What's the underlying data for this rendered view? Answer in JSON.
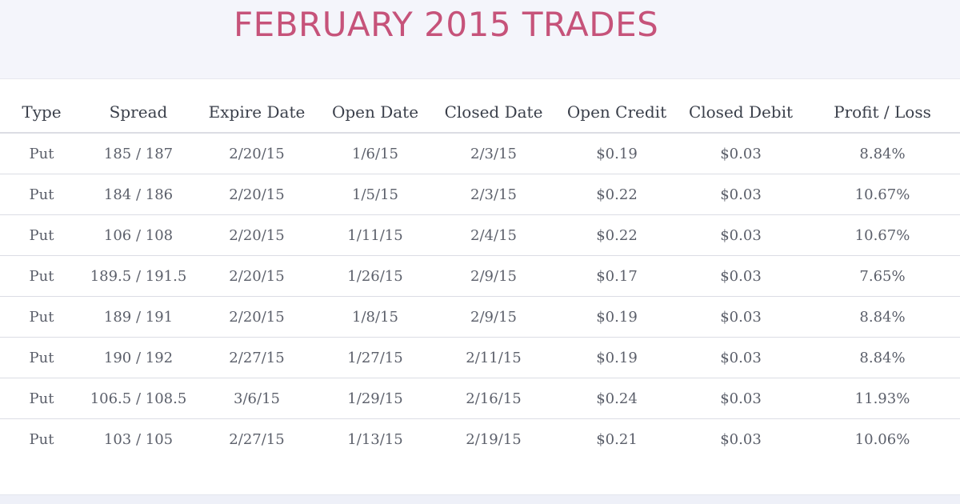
{
  "title": "FEBRUARY 2015 TRADES",
  "table": {
    "headers": [
      "Type",
      "Spread",
      "Expire Date",
      "Open Date",
      "Closed Date",
      "Open Credit",
      "Closed Debit",
      "Profit / Loss"
    ],
    "rows": [
      [
        "Put",
        "185 / 187",
        "2/20/15",
        "1/6/15",
        "2/3/15",
        "$0.19",
        "$0.03",
        "8.84%"
      ],
      [
        "Put",
        "184 / 186",
        "2/20/15",
        "1/5/15",
        "2/3/15",
        "$0.22",
        "$0.03",
        "10.67%"
      ],
      [
        "Put",
        "106 / 108",
        "2/20/15",
        "1/11/15",
        "2/4/15",
        "$0.22",
        "$0.03",
        "10.67%"
      ],
      [
        "Put",
        "189.5 / 191.5",
        "2/20/15",
        "1/26/15",
        "2/9/15",
        "$0.17",
        "$0.03",
        "7.65%"
      ],
      [
        "Put",
        "189 / 191",
        "2/20/15",
        "1/8/15",
        "2/9/15",
        "$0.19",
        "$0.03",
        "8.84%"
      ],
      [
        "Put",
        "190 / 192",
        "2/27/15",
        "1/27/15",
        "2/11/15",
        "$0.19",
        "$0.03",
        "8.84%"
      ],
      [
        "Put",
        "106.5 / 108.5",
        "3/6/15",
        "1/29/15",
        "2/16/15",
        "$0.24",
        "$0.03",
        "11.93%"
      ],
      [
        "Put",
        "103 / 105",
        "2/27/15",
        "1/13/15",
        "2/19/15",
        "$0.21",
        "$0.03",
        "10.06%"
      ]
    ]
  }
}
